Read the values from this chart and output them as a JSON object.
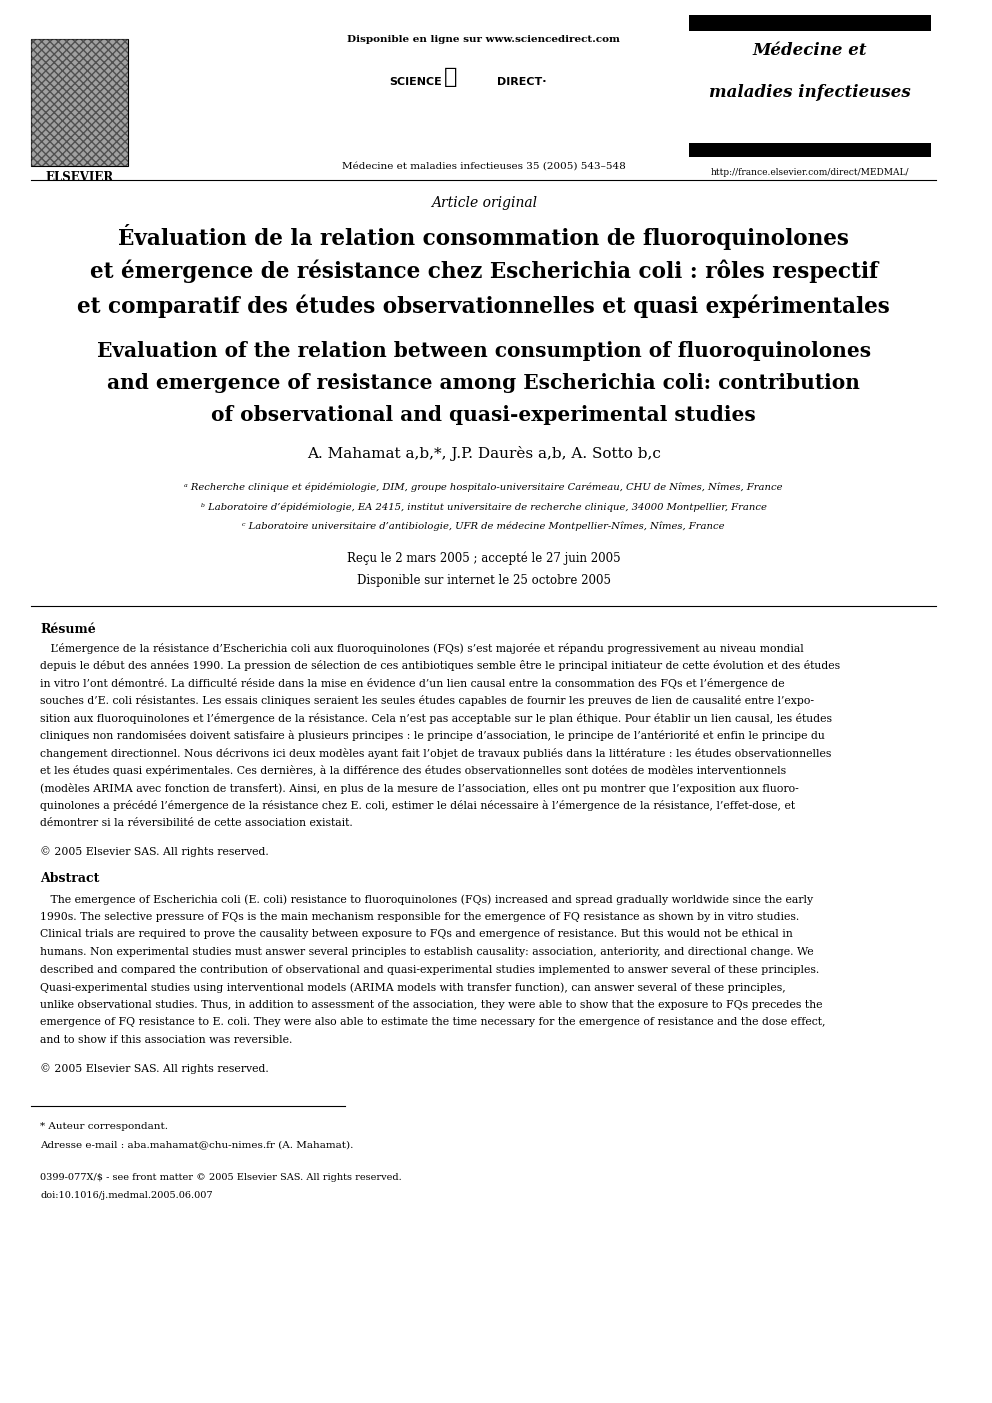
{
  "page_width": 9.92,
  "page_height": 14.03,
  "bg_color": "#ffffff",
  "text_color": "#000000",
  "elsevier_text": "ELSEVIER",
  "disponible_text": "Disponible en ligne sur www.sciencedirect.com",
  "journal_name_line1": "Médecine et",
  "journal_name_line2": "maladies infectieuses",
  "journal_ref": "Médecine et maladies infectieuses 35 (2005) 543–548",
  "journal_url": "http://france.elsevier.com/direct/MEDMAL/",
  "article_type": "Article original",
  "title_fr_line1": "Évaluation de la relation consommation de fluoroquinolones",
  "title_fr_line2": "et émergence de résistance chez Escherichia coli : rôles respectif",
  "title_fr_line3": "et comparatif des études observationnelles et quasi expérimentales",
  "title_en_line1": "Evaluation of the relation between consumption of fluoroquinolones",
  "title_en_line2": "and emergence of resistance among Escherichia coli: contribution",
  "title_en_line3": "of observational and quasi-experimental studies",
  "authors_line": "A. Mahamat a,b,*, J.P. Daurès a,b, A. Sotto b,c",
  "affil_a": "ᵃ Recherche clinique et épidémiologie, DIM, groupe hospitalo-universitaire Carémeau, CHU de Nîmes, Nîmes, France",
  "affil_b": "ᵇ Laboratoire d’épidémiologie, EA 2415, institut universitaire de recherche clinique, 34000 Montpellier, France",
  "affil_c": "ᶜ Laboratoire universitaire d’antibiologie, UFR de médecine Montpellier-Nîmes, Nîmes, France",
  "received": "Reçu le 2 mars 2005 ; accepté le 27 juin 2005",
  "available": "Disponible sur internet le 25 octobre 2005",
  "resume_title": "Résumé",
  "resume_lines": [
    "   L’émergence de la résistance d’Escherichia coli aux fluoroquinolones (FQs) s’est majorée et répandu progressivement au niveau mondial",
    "depuis le début des années 1990. La pression de sélection de ces antibiotiques semble être le principal initiateur de cette évolution et des études",
    "in vitro l’ont démontré. La difficulté réside dans la mise en évidence d’un lien causal entre la consommation des FQs et l’émergence de",
    "souches d’E. coli résistantes. Les essais cliniques seraient les seules études capables de fournir les preuves de lien de causalité entre l’expo-",
    "sition aux fluoroquinolones et l’émergence de la résistance. Cela n’est pas acceptable sur le plan éthique. Pour établir un lien causal, les études",
    "cliniques non randomisées doivent satisfaire à plusieurs principes : le principe d’association, le principe de l’antériorité et enfin le principe du",
    "changement directionnel. Nous décrivons ici deux modèles ayant fait l’objet de travaux publiés dans la littérature : les études observationnelles",
    "et les études quasi expérimentales. Ces dernières, à la différence des études observationnelles sont dotées de modèles interventionnels",
    "(modèles ARIMA avec fonction de transfert). Ainsi, en plus de la mesure de l’association, elles ont pu montrer que l’exposition aux fluoro-",
    "quinolones a précédé l’émergence de la résistance chez E. coli, estimer le délai nécessaire à l’émergence de la résistance, l’effet-dose, et",
    "démontrer si la réversibilité de cette association existait."
  ],
  "resume_copyright": "© 2005 Elsevier SAS. All rights reserved.",
  "abstract_title": "Abstract",
  "abstract_lines": [
    "   The emergence of Escherichia coli (E. coli) resistance to fluoroquinolones (FQs) increased and spread gradually worldwide since the early",
    "1990s. The selective pressure of FQs is the main mechanism responsible for the emergence of FQ resistance as shown by in vitro studies.",
    "Clinical trials are required to prove the causality between exposure to FQs and emergence of resistance. But this would not be ethical in",
    "humans. Non experimental studies must answer several principles to establish causality: association, anteriority, and directional change. We",
    "described and compared the contribution of observational and quasi-experimental studies implemented to answer several of these principles.",
    "Quasi-experimental studies using interventional models (ARIMA models with transfer function), can answer several of these principles,",
    "unlike observational studies. Thus, in addition to assessment of the association, they were able to show that the exposure to FQs precedes the",
    "emergence of FQ resistance to E. coli. They were also able to estimate the time necessary for the emergence of resistance and the dose effect,",
    "and to show if this association was reversible."
  ],
  "abstract_copyright": "© 2005 Elsevier SAS. All rights reserved.",
  "footnote_star": "* Auteur correspondant.",
  "footnote_email": "Adresse e-mail : aba.mahamat@chu-nimes.fr (A. Mahamat).",
  "footer_issn": "0399-077X/$ - see front matter © 2005 Elsevier SAS. All rights reserved.",
  "footer_doi": "doi:10.1016/j.medmal.2005.06.007"
}
